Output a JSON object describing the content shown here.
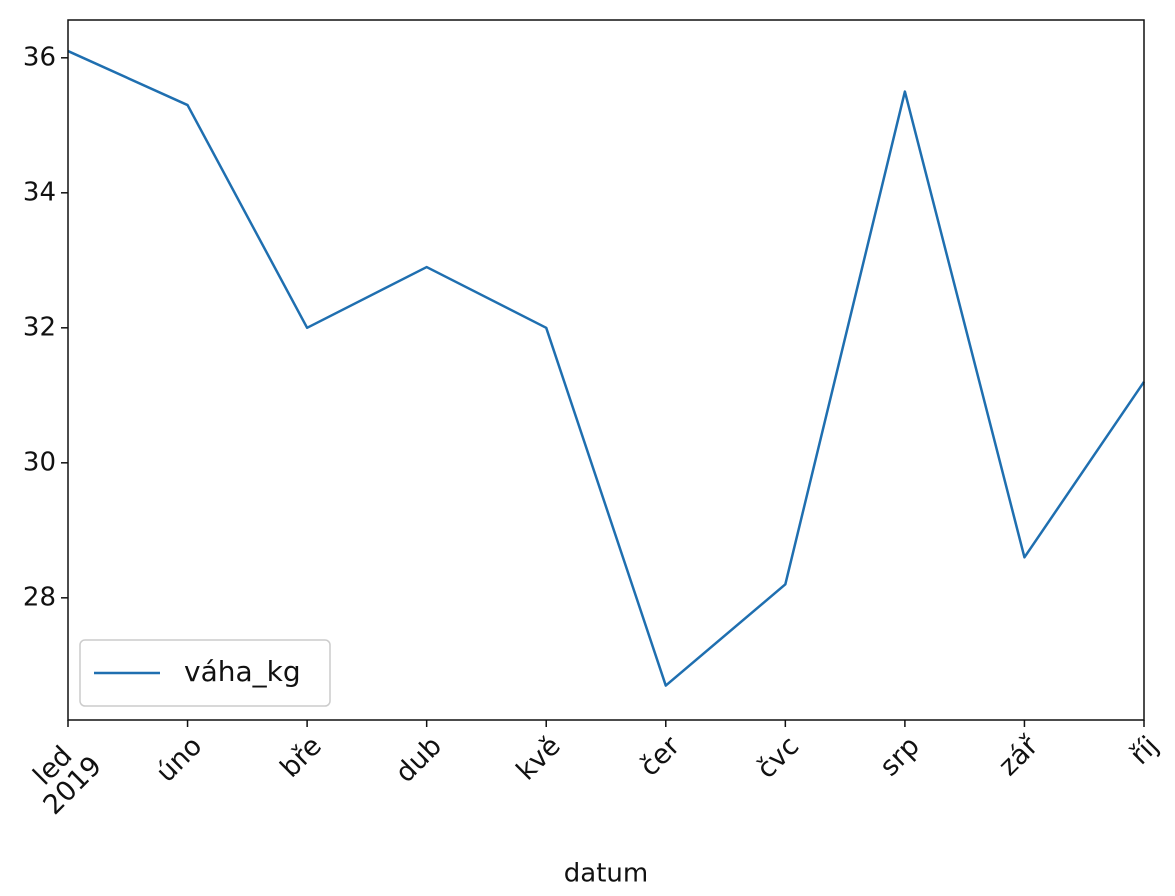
{
  "chart_data": {
    "type": "line",
    "categories": [
      "led\n2019",
      "úno",
      "bře",
      "dub",
      "kvě",
      "čer",
      "čvc",
      "srp",
      "zář",
      "říj"
    ],
    "series": [
      {
        "name": "váha_kg",
        "color": "#1f6fb0",
        "values": [
          36.1,
          35.3,
          32.0,
          32.9,
          32.0,
          26.7,
          28.2,
          35.5,
          28.6,
          31.2
        ]
      }
    ],
    "xlabel": "datum",
    "ylim": [
      26.19,
      36.56
    ],
    "yticks": [
      28,
      30,
      32,
      34,
      36
    ],
    "legend": "lower left",
    "grid": false
  }
}
